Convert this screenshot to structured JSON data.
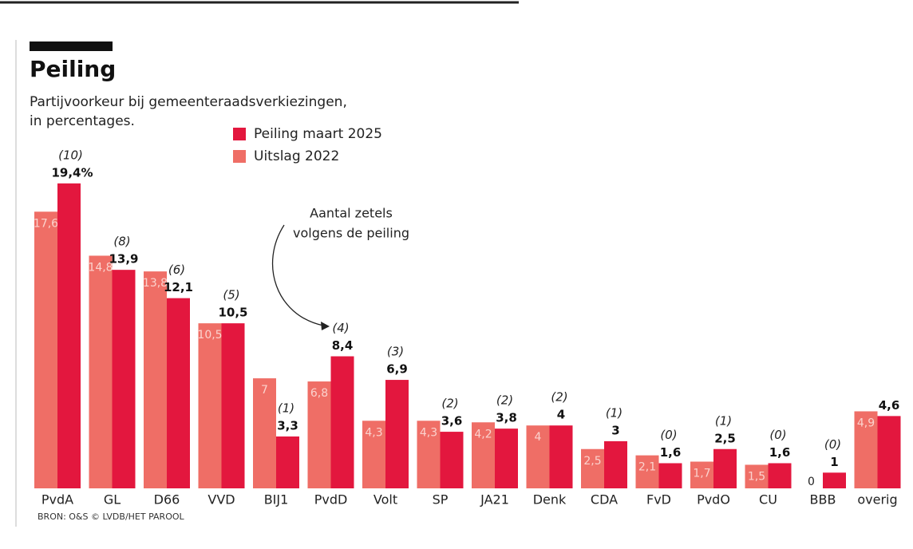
{
  "chart_data": {
    "type": "bar",
    "title": "Peiling",
    "subtitle": [
      "Partijvoorkeur bij gemeenteraadsverkiezingen,",
      "in percentages."
    ],
    "annotation": [
      "Aantal zetels",
      "volgens de peiling"
    ],
    "source": "BRON: O&S © LVDB/HET PAROOL",
    "categories": [
      "PvdA",
      "GL",
      "D66",
      "VVD",
      "BIJ1",
      "PvdD",
      "Volt",
      "SP",
      "JA21",
      "Denk",
      "CDA",
      "FvD",
      "PvdO",
      "CU",
      "BBB",
      "overig"
    ],
    "ylim": [
      0,
      20
    ],
    "series": [
      {
        "name": "Uitslag 2022",
        "color": "#ef6e66",
        "values": [
          17.6,
          14.8,
          13.8,
          10.5,
          7,
          6.8,
          4.3,
          4.3,
          4.2,
          4,
          2.5,
          2.1,
          1.7,
          1.5,
          0,
          4.9
        ],
        "value_labels": [
          "17,6",
          "14,8",
          "13,8",
          "10,5",
          "7",
          "6,8",
          "4,3",
          "4,3",
          "4,2",
          "4",
          "2,5",
          "2,1",
          "1,7",
          "1,5",
          "0",
          "4,9"
        ]
      },
      {
        "name": "Peiling maart 2025",
        "color": "#e3173e",
        "values": [
          19.4,
          13.9,
          12.1,
          10.5,
          3.3,
          8.4,
          6.9,
          3.6,
          3.8,
          4,
          3,
          1.6,
          2.5,
          1.6,
          1,
          4.6
        ],
        "value_labels": [
          "19,4%",
          "13,9",
          "12,1",
          "10,5",
          "3,3",
          "8,4",
          "6,9",
          "3,6",
          "3,8",
          "4",
          "3",
          "1,6",
          "2,5",
          "1,6",
          "1",
          "4,6"
        ],
        "seat_labels": [
          "(10)",
          "(8)",
          "(6)",
          "(5)",
          "(1)",
          "(4)",
          "(3)",
          "(2)",
          "(2)",
          "(2)",
          "(1)",
          "(0)",
          "(1)",
          "(0)",
          "(0)",
          null
        ]
      }
    ]
  }
}
